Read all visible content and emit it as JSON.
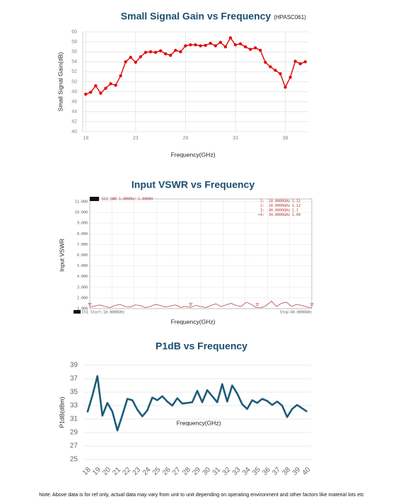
{
  "chart_data": [
    {
      "type": "line",
      "title": "Small Signal Gain vs Frequency",
      "subtitle": "(HPASC061)",
      "y_label": "Small Signal Gain(dB)",
      "x_label": "Frequency(GHz)",
      "x": [
        18,
        18.5,
        19,
        19.5,
        20,
        20.5,
        21,
        21.5,
        22,
        22.5,
        23,
        23.5,
        24,
        24.5,
        25,
        25.5,
        26,
        26.5,
        27,
        27.5,
        28,
        28.5,
        29,
        29.5,
        30,
        30.5,
        31,
        31.5,
        32,
        32.5,
        33,
        33.5,
        34,
        34.5,
        35,
        35.5,
        36,
        36.5,
        37,
        37.5,
        38,
        38.5,
        39,
        39.5,
        40
      ],
      "values": [
        47.5,
        47.9,
        49.2,
        47.7,
        48.7,
        49.6,
        49.3,
        51.2,
        54.0,
        54.9,
        53.9,
        55.0,
        55.9,
        56.0,
        55.9,
        56.2,
        55.6,
        55.3,
        56.3,
        56.0,
        57.2,
        57.4,
        57.4,
        57.2,
        57.3,
        57.7,
        57.2,
        57.9,
        57.0,
        58.8,
        57.4,
        57.6,
        57.0,
        56.5,
        56.8,
        56.3,
        53.9,
        53.0,
        52.3,
        51.6,
        48.9,
        50.9,
        54.1,
        53.6,
        54.0
      ],
      "color": "#e01010",
      "point_markers": true,
      "xlim": [
        17.7,
        40.3
      ],
      "ylim": [
        40,
        60
      ],
      "xticks": [
        18,
        23,
        28,
        33,
        38
      ],
      "yticks": [
        40,
        42,
        44,
        46,
        48,
        50,
        52,
        54,
        56,
        58,
        60
      ],
      "grid": "both"
    },
    {
      "type": "line",
      "title": "Input VSWR vs Frequency",
      "y_label": "Input VSWR",
      "x_label": "Frequency(GHz)",
      "header": "S11 SWR 1.0000U/ 1.0000U",
      "start_label": "Ch1 Start:18.0000GHz",
      "stop_label": "Stop:40.0000GHz",
      "x": [
        18,
        18.5,
        19,
        19.5,
        20,
        20.5,
        21,
        21.5,
        22,
        22.5,
        23,
        23.5,
        24,
        24.5,
        25,
        25.5,
        26,
        26.5,
        27,
        27.5,
        28,
        28.5,
        29,
        29.5,
        30,
        30.5,
        31,
        31.5,
        32,
        32.5,
        33,
        33.5,
        34,
        34.5,
        35,
        35.5,
        36,
        36.5,
        37,
        37.5,
        38,
        38.5,
        39,
        39.5,
        40
      ],
      "values": [
        1.11,
        1.25,
        1.35,
        1.2,
        1.1,
        1.3,
        1.4,
        1.2,
        1.15,
        1.35,
        1.3,
        1.1,
        1.2,
        1.4,
        1.3,
        1.15,
        1.25,
        1.35,
        1.12,
        1.2,
        1.12,
        1.3,
        1.2,
        1.1,
        1.3,
        1.45,
        1.2,
        1.35,
        1.5,
        1.3,
        1.2,
        1.6,
        1.4,
        1.1,
        1.09,
        1.3,
        1.7,
        1.2,
        1.5,
        1.6,
        1.2,
        1.4,
        1.3,
        1.15,
        1.1
      ],
      "color": "#b04848",
      "point_markers": false,
      "xlim": [
        18,
        40
      ],
      "ylim": [
        1,
        11
      ],
      "yticks": [
        {
          "value": 1,
          "label": "1.000"
        },
        {
          "value": 2,
          "label": "2.000"
        },
        {
          "value": 3,
          "label": "3.000"
        },
        {
          "value": 4,
          "label": "4.000"
        },
        {
          "value": 5,
          "label": "5.000"
        },
        {
          "value": 6,
          "label": "6.000"
        },
        {
          "value": 7,
          "label": "7.000"
        },
        {
          "value": 8,
          "label": "8.000"
        },
        {
          "value": 9,
          "label": "9.000"
        },
        {
          "value": 10,
          "label": "10.000"
        },
        {
          "value": 11,
          "label": "11.000"
        }
      ],
      "grid": "both",
      "vna_markers": [
        {
          "name": "1:",
          "x": {
            "value": 18,
            "label": "18.0000GHz"
          },
          "value": 1.11
        },
        {
          "name": "2:",
          "x": {
            "value": 28,
            "label": "28.0000GHz"
          },
          "value": 1.12
        },
        {
          "name": "3:",
          "x": {
            "value": 40,
            "label": "40.0000GHz"
          },
          "value": 1.1
        },
        {
          "name": ">4:",
          "x": {
            "value": 34.6,
            "label": "34.6000GHz"
          },
          "value": 1.09
        }
      ]
    },
    {
      "type": "line",
      "title": "P1dB vs Frequency",
      "y_label": "P1dB(dBm)",
      "x_label": "Frequency(GHz)",
      "x": [
        18,
        18.5,
        19,
        19.5,
        20,
        20.5,
        21,
        21.5,
        22,
        22.5,
        23,
        23.5,
        24,
        24.5,
        25,
        25.5,
        26,
        26.5,
        27,
        27.5,
        28,
        28.5,
        29,
        29.5,
        30,
        30.5,
        31,
        31.5,
        32,
        32.5,
        33,
        33.5,
        34,
        34.5,
        35,
        35.5,
        36,
        36.5,
        37,
        37.5,
        38,
        38.5,
        39,
        39.5,
        40
      ],
      "values": [
        32,
        34.5,
        37.4,
        31.5,
        33.4,
        32.1,
        29.3,
        31.6,
        34.0,
        33.8,
        32.4,
        31.4,
        32.3,
        34.2,
        33.8,
        34.4,
        33.6,
        33.0,
        34.1,
        33.3,
        33.4,
        33.5,
        35.2,
        33.5,
        35.3,
        34.4,
        33.5,
        36.2,
        33.6,
        36.0,
        34.8,
        33.2,
        32.5,
        33.8,
        33.4,
        34.0,
        33.7,
        33.1,
        33.6,
        33.0,
        31.3,
        32.5,
        33.1,
        32.6,
        32.1
      ],
      "color": "#1d5b79",
      "point_markers": false,
      "xlim": [
        17.6,
        40.4
      ],
      "ylim": [
        25,
        39
      ],
      "xticks": [
        18,
        19,
        20,
        21,
        22,
        23,
        24,
        25,
        26,
        27,
        28,
        29,
        30,
        31,
        32,
        33,
        34,
        35,
        36,
        37,
        38,
        39,
        40
      ],
      "yticks": [
        25,
        27,
        29,
        31,
        33,
        35,
        37,
        39
      ],
      "grid": "y"
    }
  ],
  "note": "Note: Above data is for ref only, actual data may vary from unit to unit depending on operating environment and other factors like material lots etc"
}
